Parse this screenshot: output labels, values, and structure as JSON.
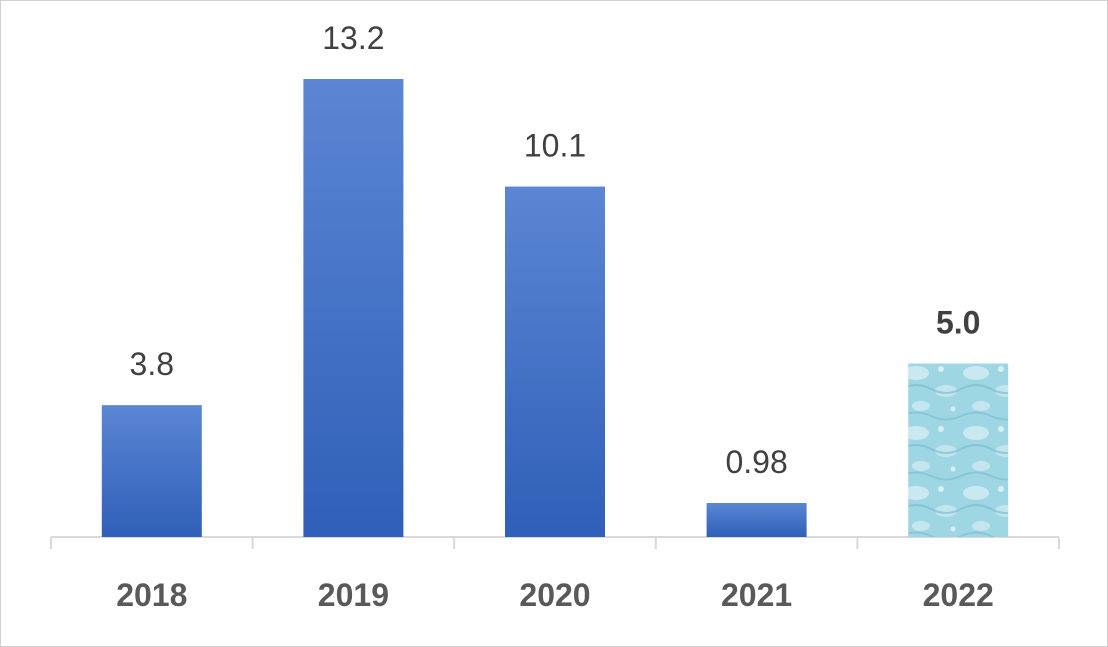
{
  "chart_data": {
    "type": "bar",
    "categories": [
      "2018",
      "2019",
      "2020",
      "2021",
      "2022"
    ],
    "values": [
      3.8,
      13.2,
      10.1,
      0.98,
      5.0
    ],
    "data_labels": [
      "3.8",
      "13.2",
      "10.1",
      "0.98",
      "5.0"
    ],
    "title": "",
    "xlabel": "",
    "ylabel": "",
    "ylim": [
      0,
      13.2
    ],
    "grid": false,
    "legend": "none",
    "highlight_index": 4,
    "colors": {
      "bar": "#4472c4",
      "bar_light": "#5b86d3",
      "bar_dark": "#2f5fb8",
      "highlight_fill": "#9fd6e4",
      "highlight_label": "#548235",
      "label": "#404040",
      "category_label": "#595959",
      "axis": "#d9d9d9"
    }
  }
}
